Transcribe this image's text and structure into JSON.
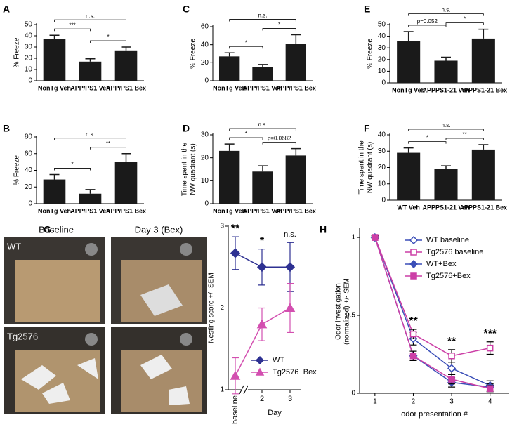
{
  "chart_data": [
    {
      "type": "bar",
      "panel": "A",
      "ylabel": [
        "% Freeze"
      ],
      "categories": [
        "NonTg Veh",
        "APP/PS1 Veh",
        "APP/PS1 Bex"
      ],
      "values": [
        37,
        17,
        27
      ],
      "errors": [
        3.5,
        2.5,
        3
      ],
      "color": "#1a1a1a",
      "ylim": [
        0,
        50
      ],
      "yticks": [
        0,
        10,
        20,
        30,
        40,
        50
      ],
      "annotations": [
        "n.s.",
        "***",
        "*"
      ]
    },
    {
      "type": "bar",
      "panel": "B",
      "ylabel": [
        "% Freeze"
      ],
      "categories": [
        "NonTg Veh",
        "APP/PS1 Veh",
        "APP/PS1 Bex"
      ],
      "values": [
        29,
        12,
        50
      ],
      "errors": [
        6,
        5,
        10
      ],
      "color": "#1a1a1a",
      "ylim": [
        0,
        80
      ],
      "yticks": [
        0,
        20,
        40,
        60,
        80
      ],
      "annotations": [
        "n.s.",
        "*",
        "**"
      ]
    },
    {
      "type": "bar",
      "panel": "C",
      "ylabel": [
        "% Freeze"
      ],
      "categories": [
        "NonTg Veh",
        "APP/PS1 Veh",
        "APP/PS1 Bex"
      ],
      "values": [
        27,
        15,
        41
      ],
      "errors": [
        4,
        3,
        10
      ],
      "color": "#1a1a1a",
      "ylim": [
        0,
        60
      ],
      "yticks": [
        0,
        20,
        40,
        60
      ],
      "annotations": [
        "n.s.",
        "*",
        "*"
      ]
    },
    {
      "type": "bar",
      "panel": "D",
      "ylabel": [
        "Time spent in the",
        "NW quadrant (s)"
      ],
      "categories": [
        "NonTg Veh",
        "APP/PS1 Veh",
        "APP/PS1 Bex"
      ],
      "values": [
        23,
        14,
        21
      ],
      "errors": [
        3,
        2.5,
        3
      ],
      "color": "#1a1a1a",
      "ylim": [
        0,
        30
      ],
      "yticks": [
        0,
        10,
        20,
        30
      ],
      "annotations": [
        "n.s.",
        "*",
        "p=0.0682"
      ]
    },
    {
      "type": "bar",
      "panel": "E",
      "ylabel": [
        "% Freeze"
      ],
      "categories": [
        "NonTg Veh",
        "APPPS1-21 Veh",
        "APPPS1-21 Bex"
      ],
      "values": [
        36,
        19,
        38
      ],
      "errors": [
        8,
        3,
        8
      ],
      "color": "#1a1a1a",
      "ylim": [
        0,
        50
      ],
      "yticks": [
        0,
        10,
        20,
        30,
        40,
        50
      ],
      "annotations": [
        "n.s.",
        "p=0.052",
        "*"
      ]
    },
    {
      "type": "bar",
      "panel": "F",
      "ylabel": [
        "Time spent in the",
        "NW quadrant (s)"
      ],
      "categories": [
        "WT Veh",
        "APPPS1-21 Veh",
        "APPPS1-21 Bex"
      ],
      "values": [
        29,
        19,
        31
      ],
      "errors": [
        3,
        2,
        3
      ],
      "color": "#1a1a1a",
      "ylim": [
        0,
        40
      ],
      "yticks": [
        0,
        10,
        20,
        30,
        40
      ],
      "annotations": [
        "n.s.",
        "*",
        "**"
      ]
    },
    {
      "type": "line",
      "panel": "G",
      "photo_columns": [
        "Baseline",
        "Day 3 (Bex)"
      ],
      "photo_rows": [
        "WT",
        "Tg2576"
      ],
      "ylabel": [
        "Nesting score +/- SEM"
      ],
      "xlabel": "Day",
      "categories": [
        "baseline",
        "2",
        "3"
      ],
      "series": [
        {
          "name": "WT",
          "color": "#2e3192",
          "marker": "diamond",
          "filled": true,
          "values": [
            2.67,
            2.5,
            2.5
          ],
          "errors": [
            0.2,
            0.22,
            0.3
          ]
        },
        {
          "name": "Tg2576+Bex",
          "color": "#d34fb0",
          "marker": "triangle",
          "filled": true,
          "values": [
            1.17,
            1.8,
            2.0
          ],
          "errors": [
            0.22,
            0.2,
            0.3
          ]
        }
      ],
      "ylim": [
        1,
        3
      ],
      "yticks": [
        1,
        2,
        3
      ],
      "annotations": [
        "**",
        "*",
        "n.s."
      ],
      "legend": "lower right"
    },
    {
      "type": "line",
      "panel": "H",
      "ylabel": [
        "Odor investigation",
        "(normalized) +/- SEM"
      ],
      "xlabel": "odor presentation #",
      "x": [
        1,
        2,
        3,
        4
      ],
      "series": [
        {
          "name": "WT baseline",
          "color": "#3b4fb8",
          "marker": "diamond",
          "filled": false,
          "values": [
            1,
            0.35,
            0.16,
            0.05
          ],
          "errors": [
            0.01,
            0.04,
            0.04,
            0.03
          ]
        },
        {
          "name": "Tg2576 baseline",
          "color": "#cc3fa6",
          "marker": "square",
          "filled": false,
          "values": [
            1,
            0.38,
            0.24,
            0.29
          ],
          "errors": [
            0.01,
            0.03,
            0.04,
            0.04
          ]
        },
        {
          "name": "WT+Bex",
          "color": "#3b4fb8",
          "marker": "diamond",
          "filled": true,
          "values": [
            1,
            0.24,
            0.07,
            0.04
          ],
          "errors": [
            0.01,
            0.03,
            0.03,
            0.02
          ]
        },
        {
          "name": "Tg2576+Bex",
          "color": "#cc3fa6",
          "marker": "square",
          "filled": true,
          "values": [
            1,
            0.24,
            0.09,
            0.03
          ],
          "errors": [
            0.01,
            0.03,
            0.03,
            0.02
          ]
        }
      ],
      "xlim": [
        0.6,
        4.5
      ],
      "xticks": [
        1,
        2,
        3,
        4
      ],
      "ylim": [
        0,
        1.05
      ],
      "yticks": [
        0,
        0.5,
        1
      ],
      "annotations": [
        null,
        "**",
        "**",
        "***"
      ],
      "legend": "upper right"
    }
  ]
}
